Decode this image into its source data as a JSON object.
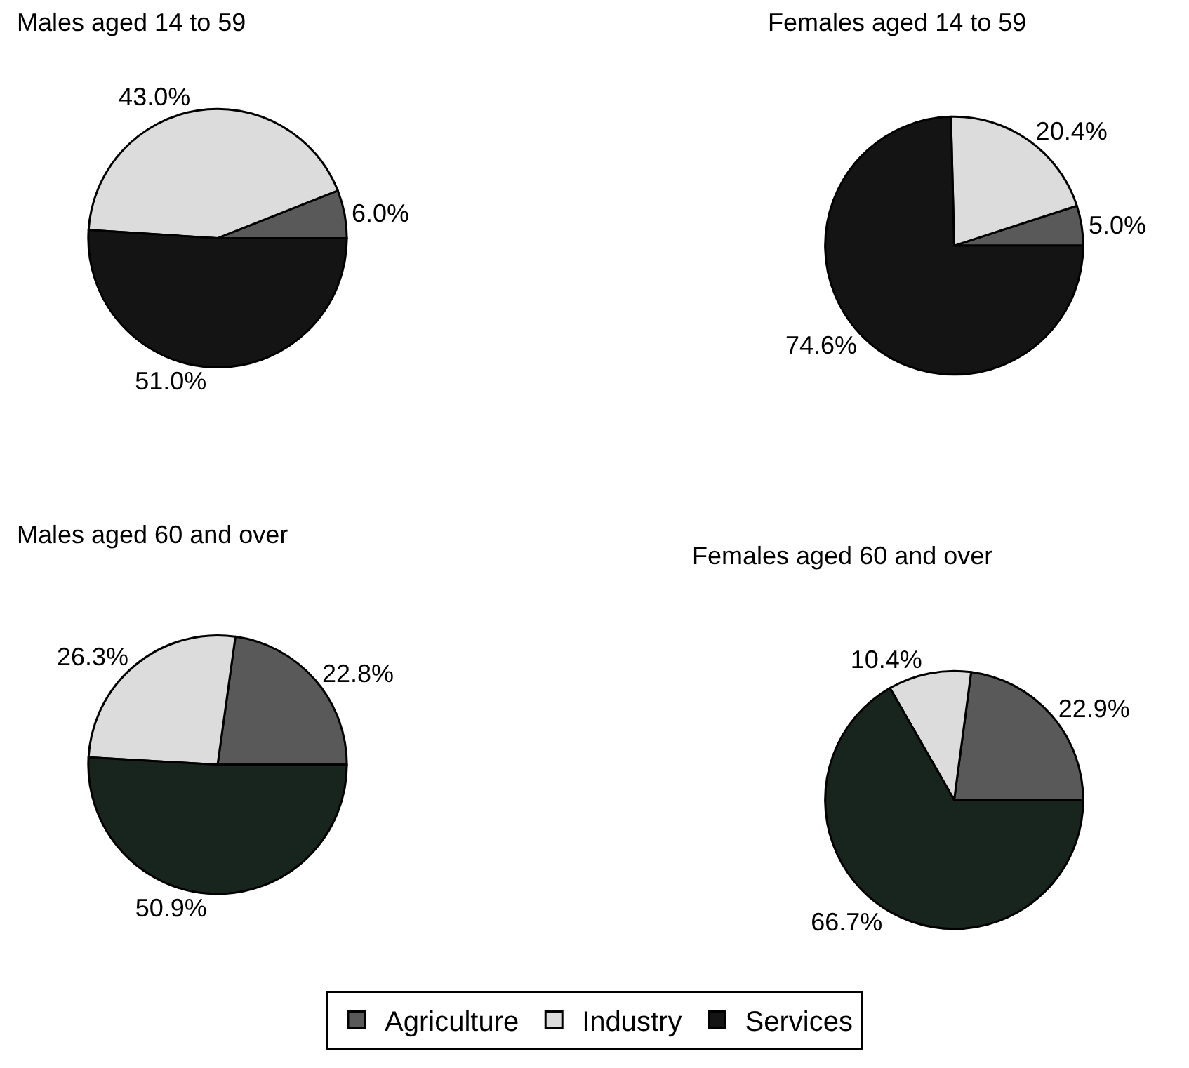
{
  "chart_data": [
    {
      "type": "pie",
      "title": "Males aged 14 to 59",
      "categories": [
        "Agriculture",
        "Industry",
        "Services"
      ],
      "values": [
        6.0,
        43.0,
        51.0
      ],
      "value_labels": [
        "6.0%",
        "43.0%",
        "51.0%"
      ],
      "colors": [
        "#595959",
        "#dcdcdc",
        "#141414"
      ],
      "legend": "bottom"
    },
    {
      "type": "pie",
      "title": "Females aged 14 to 59",
      "categories": [
        null,
        null,
        null
      ],
      "values": [
        5.0,
        20.4,
        74.6
      ],
      "value_labels": [
        "5.0%",
        "20.4%",
        "74.6%"
      ],
      "colors": [
        "#595959",
        "#dcdcdc",
        "#141414"
      ]
    },
    {
      "type": "pie",
      "title": "Males aged 60 and over",
      "categories": [
        null,
        null,
        null
      ],
      "values": [
        22.8,
        26.3,
        50.9
      ],
      "value_labels": [
        "22.8%",
        "26.3%",
        "50.9%"
      ],
      "colors": [
        "#595959",
        "#dcdcdc",
        "#17251e"
      ]
    },
    {
      "type": "pie",
      "title": "Females aged 60 and over",
      "categories": [
        null,
        null,
        null
      ],
      "values": [
        22.9,
        10.4,
        66.7
      ],
      "value_labels": [
        "22.9%",
        "10.4%",
        "66.7%"
      ],
      "colors": [
        "#595959",
        "#dcdcdc",
        "#17251e"
      ]
    }
  ]
}
